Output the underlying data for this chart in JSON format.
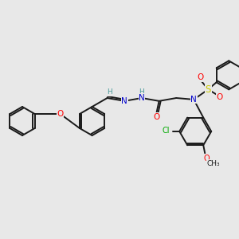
{
  "background_color": "#e8e8e8",
  "bond_color": "#1a1a1a",
  "atom_colors": {
    "N": "#0000cc",
    "O": "#ff0000",
    "S": "#cccc00",
    "Cl": "#00aa00",
    "H": "#4a9a9a",
    "C": "#1a1a1a"
  },
  "figsize": [
    3.0,
    3.0
  ],
  "dpi": 100,
  "bond_lw": 1.4,
  "ring_r": 18,
  "font_size": 7.5
}
